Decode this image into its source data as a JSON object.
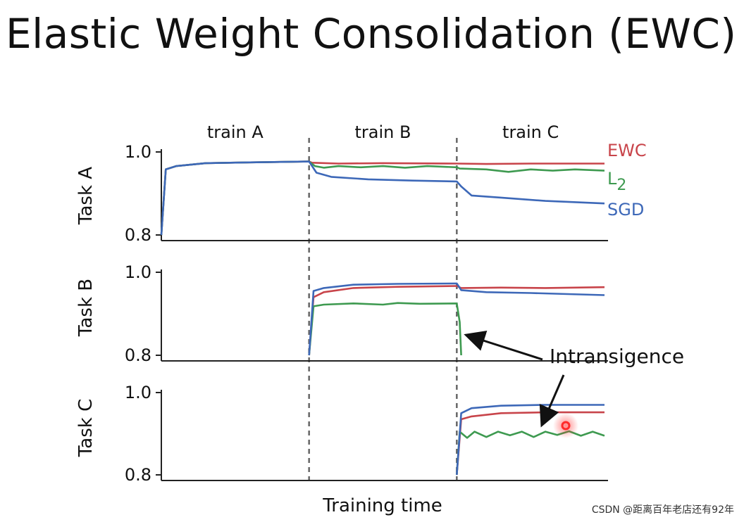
{
  "title": "Elastic Weight Consolidation (EWC)",
  "watermark": "CSDN @距离百年老店还有92年",
  "colors": {
    "EWC": "#c8444a",
    "L2": "#3e9a50",
    "SGD": "#3d68b8",
    "axis": "#222222",
    "divider": "#666666",
    "highlight": "#ff2a2a"
  },
  "chart_data": {
    "type": "line",
    "xlabel": "Training time",
    "phases": [
      "train A",
      "train B",
      "train C"
    ],
    "x_range": [
      0,
      3
    ],
    "grid": false,
    "legend": {
      "position": "right",
      "entries": [
        {
          "text": "EWC",
          "series": "EWC"
        },
        {
          "text": "L",
          "sub": "2",
          "series": "L2"
        },
        {
          "text": "SGD",
          "series": "SGD"
        }
      ]
    },
    "annotation": {
      "text": "Intransigence",
      "arrows_to": [
        "Task B L2 drop at start of train C",
        "Task C L2 curve"
      ]
    },
    "panels": [
      {
        "ylabel": "Task A",
        "ylim": [
          0.8,
          1.0
        ],
        "yticks": [
          "1.0",
          "0.8"
        ],
        "series": [
          {
            "name": "EWC",
            "points": [
              [
                0.0,
                0.8
              ],
              [
                0.03,
                0.958
              ],
              [
                0.1,
                0.966
              ],
              [
                0.3,
                0.973
              ],
              [
                0.6,
                0.975
              ],
              [
                1.0,
                0.977
              ],
              [
                1.02,
                0.974
              ],
              [
                1.2,
                0.972
              ],
              [
                1.5,
                0.973
              ],
              [
                2.0,
                0.972
              ],
              [
                2.2,
                0.971
              ],
              [
                2.5,
                0.972
              ],
              [
                3.0,
                0.972
              ]
            ]
          },
          {
            "name": "L2",
            "points": [
              [
                0.0,
                0.8
              ],
              [
                0.03,
                0.958
              ],
              [
                0.1,
                0.966
              ],
              [
                0.3,
                0.973
              ],
              [
                0.6,
                0.975
              ],
              [
                1.0,
                0.977
              ],
              [
                1.04,
                0.966
              ],
              [
                1.1,
                0.962
              ],
              [
                1.2,
                0.966
              ],
              [
                1.35,
                0.963
              ],
              [
                1.5,
                0.966
              ],
              [
                1.65,
                0.962
              ],
              [
                1.8,
                0.966
              ],
              [
                2.0,
                0.963
              ],
              [
                2.02,
                0.96
              ],
              [
                2.2,
                0.958
              ],
              [
                2.35,
                0.952
              ],
              [
                2.5,
                0.958
              ],
              [
                2.65,
                0.955
              ],
              [
                2.8,
                0.958
              ],
              [
                3.0,
                0.955
              ]
            ]
          },
          {
            "name": "SGD",
            "points": [
              [
                0.0,
                0.8
              ],
              [
                0.03,
                0.958
              ],
              [
                0.1,
                0.966
              ],
              [
                0.3,
                0.973
              ],
              [
                0.6,
                0.975
              ],
              [
                1.0,
                0.977
              ],
              [
                1.05,
                0.95
              ],
              [
                1.15,
                0.94
              ],
              [
                1.4,
                0.934
              ],
              [
                1.7,
                0.931
              ],
              [
                2.0,
                0.929
              ],
              [
                2.03,
                0.917
              ],
              [
                2.1,
                0.895
              ],
              [
                2.3,
                0.89
              ],
              [
                2.6,
                0.882
              ],
              [
                3.0,
                0.876
              ]
            ]
          }
        ]
      },
      {
        "ylabel": "Task B",
        "ylim": [
          0.8,
          1.0
        ],
        "yticks": [
          "1.0",
          "0.8"
        ],
        "series": [
          {
            "name": "EWC",
            "points": [
              [
                1.0,
                0.8
              ],
              [
                1.03,
                0.94
              ],
              [
                1.1,
                0.952
              ],
              [
                1.3,
                0.962
              ],
              [
                1.6,
                0.965
              ],
              [
                2.0,
                0.967
              ],
              [
                2.03,
                0.962
              ],
              [
                2.3,
                0.963
              ],
              [
                2.6,
                0.962
              ],
              [
                3.0,
                0.964
              ]
            ]
          },
          {
            "name": "L2",
            "points": [
              [
                1.0,
                0.8
              ],
              [
                1.03,
                0.918
              ],
              [
                1.1,
                0.922
              ],
              [
                1.3,
                0.925
              ],
              [
                1.5,
                0.922
              ],
              [
                1.6,
                0.926
              ],
              [
                1.75,
                0.924
              ],
              [
                2.0,
                0.925
              ],
              [
                2.02,
                0.88
              ],
              [
                2.03,
                0.8
              ]
            ]
          },
          {
            "name": "SGD",
            "points": [
              [
                1.0,
                0.8
              ],
              [
                1.03,
                0.955
              ],
              [
                1.1,
                0.962
              ],
              [
                1.3,
                0.97
              ],
              [
                1.6,
                0.972
              ],
              [
                2.0,
                0.973
              ],
              [
                2.03,
                0.957
              ],
              [
                2.2,
                0.952
              ],
              [
                2.5,
                0.95
              ],
              [
                3.0,
                0.945
              ]
            ]
          }
        ]
      },
      {
        "ylabel": "Task C",
        "ylim": [
          0.8,
          1.0
        ],
        "yticks": [
          "1.0",
          "0.8"
        ],
        "series": [
          {
            "name": "EWC",
            "points": [
              [
                2.0,
                0.8
              ],
              [
                2.03,
                0.935
              ],
              [
                2.1,
                0.942
              ],
              [
                2.3,
                0.95
              ],
              [
                2.6,
                0.952
              ],
              [
                3.0,
                0.952
              ]
            ]
          },
          {
            "name": "L2",
            "points": [
              [
                2.0,
                0.8
              ],
              [
                2.02,
                0.905
              ],
              [
                2.07,
                0.89
              ],
              [
                2.12,
                0.905
              ],
              [
                2.2,
                0.892
              ],
              [
                2.28,
                0.905
              ],
              [
                2.36,
                0.896
              ],
              [
                2.44,
                0.905
              ],
              [
                2.52,
                0.892
              ],
              [
                2.6,
                0.905
              ],
              [
                2.68,
                0.897
              ],
              [
                2.76,
                0.906
              ],
              [
                2.84,
                0.895
              ],
              [
                2.92,
                0.905
              ],
              [
                3.0,
                0.895
              ]
            ]
          },
          {
            "name": "SGD",
            "points": [
              [
                2.0,
                0.8
              ],
              [
                2.03,
                0.95
              ],
              [
                2.1,
                0.962
              ],
              [
                2.3,
                0.968
              ],
              [
                2.6,
                0.97
              ],
              [
                3.0,
                0.97
              ]
            ]
          }
        ]
      }
    ]
  }
}
